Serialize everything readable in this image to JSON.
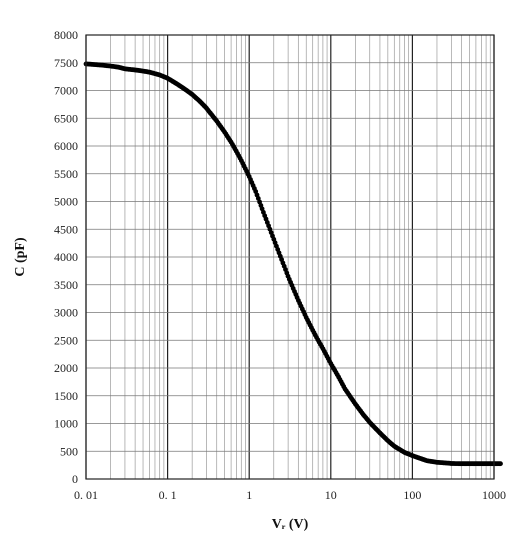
{
  "chart_data": {
    "type": "scatter",
    "title": "",
    "xlabel": "Vᵣ (V)",
    "ylabel": "C (pF)",
    "xscale": "log",
    "xlim": [
      0.01,
      1000
    ],
    "ylim": [
      0,
      8000
    ],
    "grid": true,
    "legend": "none",
    "x_ticks": [
      "0. 01",
      "0. 1",
      "1",
      "10",
      "100",
      "1000"
    ],
    "y_ticks": [
      "0",
      "500",
      "1000",
      "1500",
      "2000",
      "2500",
      "3000",
      "3500",
      "4000",
      "4500",
      "5000",
      "5500",
      "6000",
      "6500",
      "7000",
      "7500",
      "8000"
    ],
    "series": [
      {
        "color": "#000000",
        "x": [
          0.01,
          0.012,
          0.015,
          0.02,
          0.025,
          0.03,
          0.04,
          0.05,
          0.06,
          0.08,
          0.1,
          0.12,
          0.15,
          0.2,
          0.25,
          0.3,
          0.4,
          0.5,
          0.6,
          0.7,
          0.8,
          1.0,
          1.2,
          1.5,
          2.0,
          2.5,
          3.0,
          4.0,
          5.0,
          6.0,
          7.0,
          8.0,
          10,
          12,
          15,
          20,
          25,
          30,
          40,
          50,
          60,
          80,
          100,
          120,
          150,
          200,
          250,
          300,
          400,
          500,
          700,
          1000,
          1200
        ],
        "y": [
          7480,
          7470,
          7460,
          7440,
          7420,
          7390,
          7370,
          7350,
          7330,
          7280,
          7220,
          7150,
          7060,
          6930,
          6800,
          6680,
          6450,
          6250,
          6070,
          5900,
          5740,
          5450,
          5180,
          4800,
          4320,
          3950,
          3650,
          3220,
          2910,
          2680,
          2500,
          2350,
          2080,
          1880,
          1620,
          1350,
          1160,
          1020,
          830,
          690,
          590,
          480,
          420,
          380,
          330,
          300,
          290,
          280,
          275,
          275,
          275,
          275,
          275
        ]
      }
    ]
  }
}
